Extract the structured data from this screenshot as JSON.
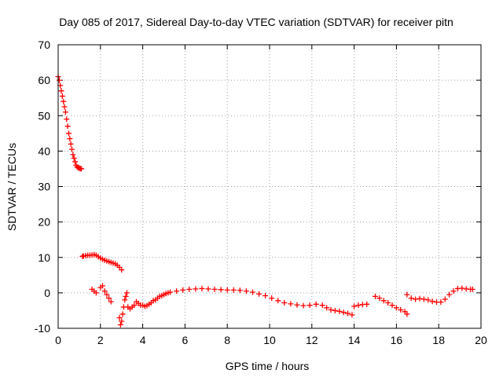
{
  "chart_data": {
    "type": "scatter",
    "title": "Day 085 of 2017, Sidereal Day-to-day VTEC variation (SDTVAR) for receiver pitn",
    "xlabel": "GPS time / hours",
    "ylabel": "SDTVAR / TECUs",
    "xlim": [
      0,
      20
    ],
    "ylim": [
      -10,
      70
    ],
    "xticks": [
      0,
      2,
      4,
      6,
      8,
      10,
      12,
      14,
      16,
      18,
      20
    ],
    "yticks": [
      -10,
      0,
      10,
      20,
      30,
      40,
      50,
      60,
      70
    ],
    "xtick_labels": [
      "0",
      "2",
      "4",
      "6",
      "8",
      "10",
      "12",
      "14",
      "16",
      "18",
      "20"
    ],
    "ytick_labels": [
      "-10",
      "0",
      "10",
      "20",
      "30",
      "40",
      "50",
      "60",
      "70"
    ],
    "grid": true,
    "marker": "plus",
    "color": "#ff0000",
    "series": [
      {
        "name": "SDTVAR",
        "x": [
          0.0,
          0.05,
          0.1,
          0.15,
          0.2,
          0.25,
          0.3,
          0.35,
          0.4,
          0.45,
          0.5,
          0.55,
          0.6,
          0.65,
          0.7,
          0.75,
          0.8,
          0.85,
          0.9,
          0.95,
          1.0,
          1.05,
          1.1,
          1.15,
          1.2,
          1.3,
          1.4,
          1.5,
          1.6,
          1.7,
          1.8,
          1.9,
          2.0,
          2.1,
          2.2,
          2.3,
          2.4,
          2.5,
          2.6,
          2.7,
          2.8,
          2.9,
          3.0,
          1.6,
          1.7,
          1.8,
          2.0,
          2.1,
          2.2,
          2.3,
          2.4,
          2.5,
          2.9,
          2.95,
          3.0,
          3.05,
          3.1,
          3.15,
          3.2,
          3.25,
          3.3,
          3.4,
          3.5,
          3.6,
          3.7,
          3.8,
          3.9,
          4.0,
          4.1,
          4.2,
          4.3,
          4.4,
          4.5,
          4.6,
          4.7,
          4.8,
          4.9,
          5.0,
          5.1,
          5.2,
          5.3,
          5.6,
          5.9,
          6.2,
          6.5,
          6.8,
          7.1,
          7.4,
          7.7,
          8.0,
          8.3,
          8.6,
          8.9,
          9.2,
          9.5,
          9.8,
          10.1,
          10.4,
          10.7,
          11.0,
          11.3,
          11.6,
          11.9,
          12.2,
          12.5,
          12.7,
          12.9,
          13.1,
          13.3,
          13.5,
          13.7,
          13.9,
          14.0,
          14.2,
          14.4,
          14.6,
          15.0,
          15.2,
          15.4,
          15.6,
          15.8,
          16.0,
          16.2,
          16.4,
          16.5,
          16.5,
          16.7,
          16.9,
          17.1,
          17.3,
          17.5,
          17.7,
          17.9,
          18.1,
          18.3,
          18.5,
          18.7,
          18.9,
          19.1,
          19.3,
          19.5,
          19.6
        ],
        "y": [
          61,
          60,
          58.5,
          57,
          55.5,
          54,
          52.5,
          51,
          49,
          47,
          45,
          43.5,
          42,
          40.5,
          39,
          38,
          37,
          36,
          35.5,
          35.3,
          35.2,
          35.1,
          35.0,
          10.3,
          10.4,
          10.5,
          10.6,
          10.6,
          10.7,
          10.8,
          10.6,
          10.2,
          9.8,
          9.5,
          9.2,
          9.0,
          8.8,
          8.6,
          8.4,
          8.2,
          7.8,
          7.2,
          6.5,
          1.0,
          0.5,
          0,
          1.5,
          2,
          0.5,
          -0.5,
          -1.5,
          -2.5,
          -7,
          -9,
          -8,
          -6,
          -4,
          -2,
          -1,
          0,
          -4,
          -4.5,
          -4.0,
          -3.5,
          -2.5,
          -3.0,
          -3.5,
          -3.5,
          -3.8,
          -3.6,
          -3.2,
          -2.8,
          -2.2,
          -2.0,
          -1.5,
          -1.0,
          -0.8,
          -0.5,
          -0.2,
          0,
          0.2,
          0.5,
          0.8,
          1.0,
          1.1,
          1.2,
          1.1,
          1.0,
          0.9,
          0.8,
          0.8,
          0.7,
          0.5,
          0.2,
          -0.3,
          -0.8,
          -1.5,
          -2.2,
          -2.8,
          -3.1,
          -3.4,
          -3.6,
          -3.5,
          -3.2,
          -3.5,
          -4.2,
          -4.8,
          -5.0,
          -5.2,
          -5.5,
          -5.8,
          -6.2,
          -3.8,
          -3.5,
          -3.3,
          -3.2,
          -1.0,
          -1.5,
          -2.2,
          -2.8,
          -3.5,
          -4.2,
          -4.8,
          -5.3,
          -6.0,
          -0.5,
          -1.5,
          -1.8,
          -1.6,
          -1.8,
          -2.0,
          -2.4,
          -2.6,
          -2.6,
          -1.8,
          -0.5,
          0.5,
          1.2,
          1.3,
          1.1,
          1.0,
          1.0
        ]
      }
    ]
  }
}
